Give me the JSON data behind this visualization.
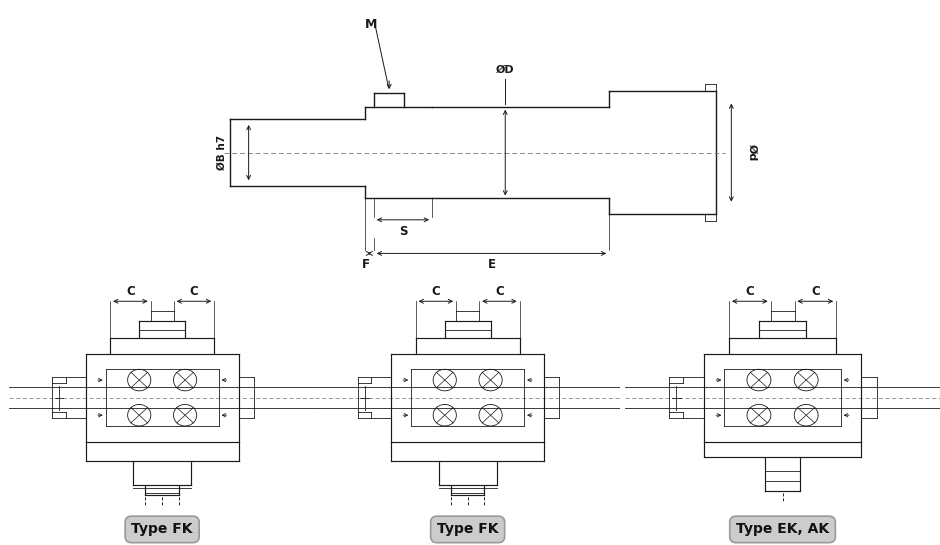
{
  "bg_color": "#ffffff",
  "lc": "#1a1a1a",
  "cl_color": "#888888",
  "label_bg": "#cccccc",
  "label_text": "#111111",
  "type_labels": [
    "Type FK",
    "Type FK",
    "Type EK, AK"
  ]
}
